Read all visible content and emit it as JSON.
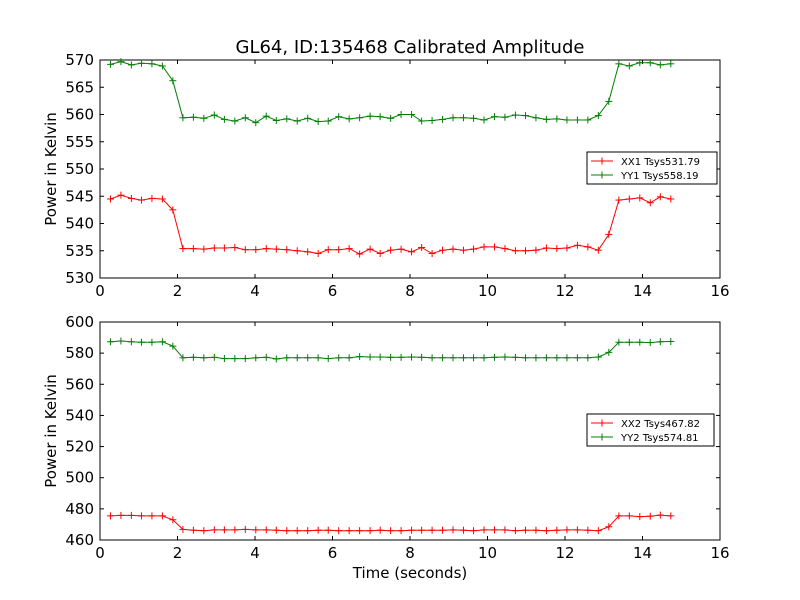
{
  "figure": {
    "title": "GL64, ID:135468 Calibrated Amplitude"
  },
  "chart_data": [
    {
      "type": "line",
      "title": "GL64, ID:135468 Calibrated Amplitude",
      "xlabel": "",
      "ylabel": "Power in Kelvin",
      "xlim": [
        0,
        16
      ],
      "ylim": [
        530,
        570
      ],
      "xticks": [
        "0",
        "2",
        "4",
        "6",
        "8",
        "10",
        "12",
        "14",
        "16"
      ],
      "yticks": [
        "530",
        "535",
        "540",
        "545",
        "550",
        "555",
        "560",
        "565",
        "570"
      ],
      "grid": false,
      "legend_position": "right",
      "x": [
        0.27,
        0.54,
        0.81,
        1.07,
        1.34,
        1.61,
        1.88,
        2.14,
        2.41,
        2.68,
        2.95,
        3.21,
        3.48,
        3.75,
        4.02,
        4.29,
        4.55,
        4.82,
        5.09,
        5.36,
        5.63,
        5.89,
        6.16,
        6.43,
        6.7,
        6.97,
        7.23,
        7.5,
        7.77,
        8.04,
        8.3,
        8.57,
        8.84,
        9.11,
        9.38,
        9.64,
        9.91,
        10.18,
        10.45,
        10.72,
        10.98,
        11.25,
        11.52,
        11.79,
        12.05,
        12.32,
        12.59,
        12.86,
        13.13,
        13.39,
        13.66,
        13.93,
        14.2,
        14.46,
        14.73
      ],
      "series": [
        {
          "name": "XX1 Tsys531.79",
          "color": "#ff0000",
          "values": [
            544.5,
            545.2,
            544.6,
            544.3,
            544.6,
            544.5,
            542.5,
            535.4,
            535.4,
            535.3,
            535.5,
            535.5,
            535.6,
            535.2,
            535.2,
            535.4,
            535.3,
            535.2,
            535.0,
            534.8,
            534.5,
            535.2,
            535.2,
            535.4,
            534.4,
            535.3,
            534.5,
            535.1,
            535.3,
            534.8,
            535.6,
            534.5,
            535.1,
            535.3,
            535.1,
            535.3,
            535.7,
            535.7,
            535.4,
            535.0,
            535.0,
            535.1,
            535.5,
            535.4,
            535.5,
            536.0,
            535.7,
            535.1,
            538.0,
            544.3,
            544.5,
            544.7,
            543.8,
            544.9,
            544.5
          ]
        },
        {
          "name": "YY1 Tsys558.19",
          "color": "#008000",
          "values": [
            569.2,
            569.7,
            569.1,
            569.4,
            569.3,
            568.9,
            566.2,
            559.4,
            559.5,
            559.3,
            559.9,
            559.1,
            558.8,
            559.4,
            558.5,
            559.7,
            558.9,
            559.2,
            558.8,
            559.3,
            558.7,
            558.8,
            559.6,
            559.2,
            559.4,
            559.7,
            559.6,
            559.3,
            560.0,
            560.0,
            558.8,
            558.9,
            559.1,
            559.4,
            559.4,
            559.3,
            559.0,
            559.6,
            559.5,
            559.9,
            559.8,
            559.4,
            559.1,
            559.2,
            559.0,
            559.0,
            559.0,
            559.8,
            562.4,
            569.3,
            568.9,
            569.5,
            569.5,
            569.1,
            569.3
          ]
        }
      ]
    },
    {
      "type": "line",
      "title": "",
      "xlabel": "Time (seconds)",
      "ylabel": "Power in Kelvin",
      "xlim": [
        0,
        16
      ],
      "ylim": [
        460,
        600
      ],
      "xticks": [
        "0",
        "2",
        "4",
        "6",
        "8",
        "10",
        "12",
        "14",
        "16"
      ],
      "yticks": [
        "460",
        "480",
        "500",
        "520",
        "540",
        "560",
        "580",
        "600"
      ],
      "grid": false,
      "legend_position": "right",
      "x": [
        0.27,
        0.54,
        0.81,
        1.07,
        1.34,
        1.61,
        1.88,
        2.14,
        2.41,
        2.68,
        2.95,
        3.21,
        3.48,
        3.75,
        4.02,
        4.29,
        4.55,
        4.82,
        5.09,
        5.36,
        5.63,
        5.89,
        6.16,
        6.43,
        6.7,
        6.97,
        7.23,
        7.5,
        7.77,
        8.04,
        8.3,
        8.57,
        8.84,
        9.11,
        9.38,
        9.64,
        9.91,
        10.18,
        10.45,
        10.72,
        10.98,
        11.25,
        11.52,
        11.79,
        12.05,
        12.32,
        12.59,
        12.86,
        13.13,
        13.39,
        13.66,
        13.93,
        14.2,
        14.46,
        14.73
      ],
      "series": [
        {
          "name": "XX2 Tsys467.82",
          "color": "#ff0000",
          "values": [
            475.5,
            475.8,
            475.8,
            475.5,
            475.5,
            475.5,
            473.0,
            466.8,
            466.3,
            466.0,
            466.5,
            466.5,
            466.5,
            466.8,
            466.5,
            466.5,
            466.3,
            466.0,
            466.0,
            466.0,
            466.3,
            466.3,
            466.0,
            466.0,
            466.0,
            466.0,
            466.3,
            466.0,
            466.0,
            466.3,
            466.3,
            466.3,
            466.3,
            466.5,
            466.3,
            466.0,
            466.5,
            466.5,
            466.5,
            466.0,
            466.3,
            466.3,
            466.0,
            466.3,
            466.5,
            466.5,
            466.3,
            466.0,
            468.5,
            475.5,
            475.5,
            475.0,
            475.3,
            476.0,
            475.5
          ]
        },
        {
          "name": "YY2 Tsys574.81",
          "color": "#008000",
          "values": [
            587.3,
            587.8,
            587.3,
            587.0,
            587.0,
            587.3,
            584.5,
            577.0,
            577.3,
            577.0,
            577.3,
            576.5,
            576.5,
            576.5,
            577.0,
            577.3,
            576.3,
            577.0,
            577.0,
            577.0,
            577.0,
            576.5,
            577.0,
            577.0,
            577.8,
            577.5,
            577.5,
            577.3,
            577.3,
            577.5,
            577.3,
            577.0,
            577.0,
            577.0,
            577.0,
            577.0,
            577.0,
            577.3,
            577.5,
            577.3,
            577.0,
            577.0,
            577.0,
            577.0,
            577.0,
            577.0,
            577.0,
            577.5,
            580.5,
            587.0,
            587.0,
            587.0,
            586.8,
            587.3,
            587.5
          ]
        }
      ]
    }
  ]
}
